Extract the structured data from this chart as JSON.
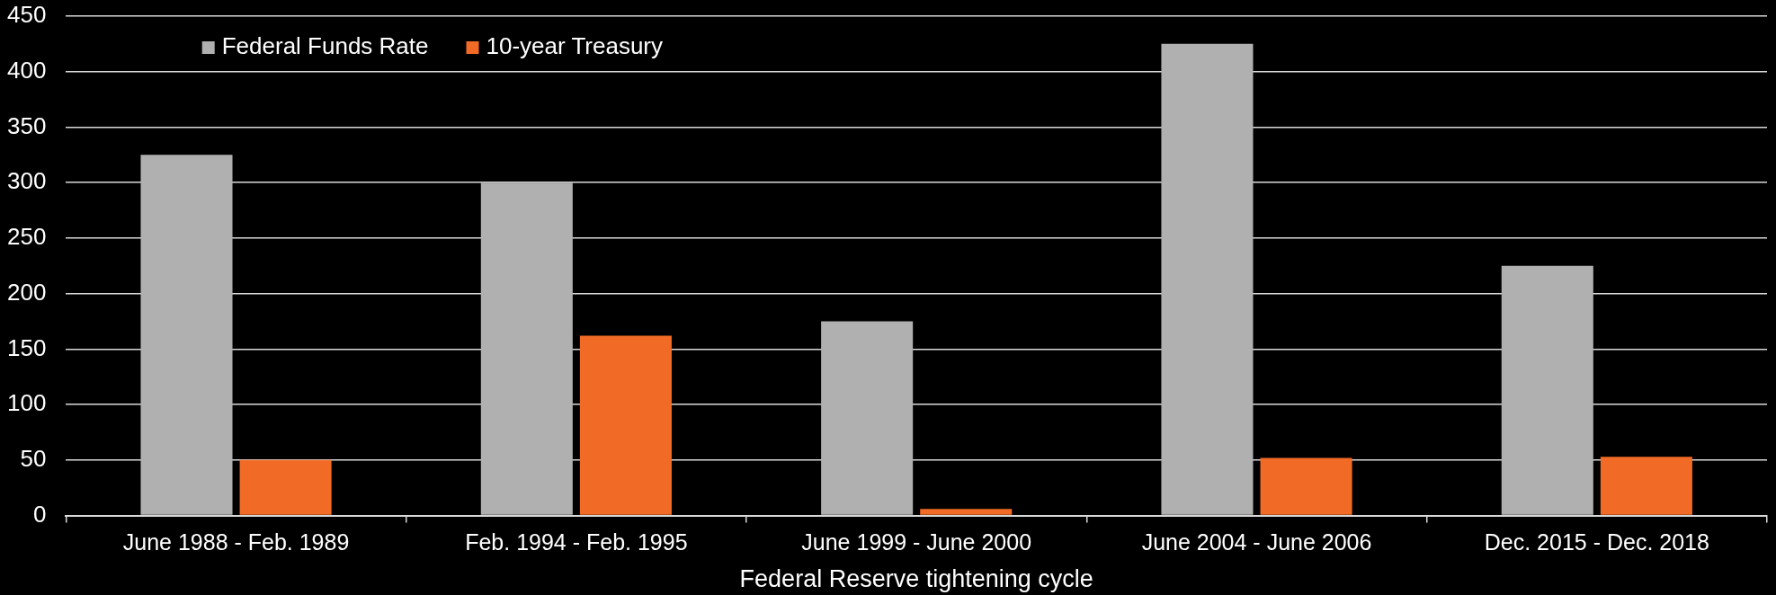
{
  "chart_data": {
    "type": "bar",
    "xlabel": "Federal Reserve tightening cycle",
    "categories": [
      "June 1988 - Feb. 1989",
      "Feb. 1994 - Feb. 1995",
      "June 1999 - June 2000",
      "June 2004 - June 2006",
      "Dec. 2015 - Dec. 2018"
    ],
    "series": [
      {
        "name": "Federal Funds Rate",
        "color": "#b0b0b0",
        "values": [
          325,
          300,
          175,
          425,
          225
        ]
      },
      {
        "name": "10-year Treasury",
        "color": "#f26b26",
        "values": [
          50,
          162,
          6,
          52,
          53
        ]
      }
    ],
    "ylim": [
      0,
      450
    ],
    "yticks": [
      0,
      50,
      100,
      150,
      200,
      250,
      300,
      350,
      400,
      450
    ],
    "grid": "y",
    "legend": "top left"
  }
}
